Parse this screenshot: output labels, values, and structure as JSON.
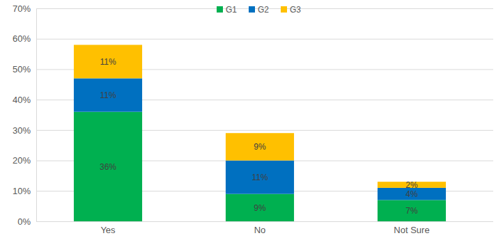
{
  "chart_data": {
    "type": "bar",
    "stacked": true,
    "grid": true,
    "legend": "top",
    "data_labels": true,
    "categories": [
      "Yes",
      "No",
      "Not Sure"
    ],
    "series": [
      {
        "name": "G1",
        "color": "#00b050",
        "values": [
          36,
          9,
          7
        ],
        "value_labels": [
          "36%",
          "9%",
          "7%"
        ]
      },
      {
        "name": "G2",
        "color": "#0070c0",
        "values": [
          11,
          11,
          4
        ],
        "value_labels": [
          "11%",
          "11%",
          "4%"
        ]
      },
      {
        "name": "G3",
        "color": "#ffc000",
        "values": [
          11,
          9,
          2
        ],
        "value_labels": [
          "11%",
          "9%",
          "2%"
        ]
      }
    ],
    "ylim": [
      0,
      70
    ],
    "yticks": [
      {
        "value": 0,
        "label": "0%"
      },
      {
        "value": 10,
        "label": "10%"
      },
      {
        "value": 20,
        "label": "20%"
      },
      {
        "value": 30,
        "label": "30%"
      },
      {
        "value": 40,
        "label": "40%"
      },
      {
        "value": 50,
        "label": "50%"
      },
      {
        "value": 60,
        "label": "60%"
      },
      {
        "value": 70,
        "label": "70%"
      }
    ]
  }
}
